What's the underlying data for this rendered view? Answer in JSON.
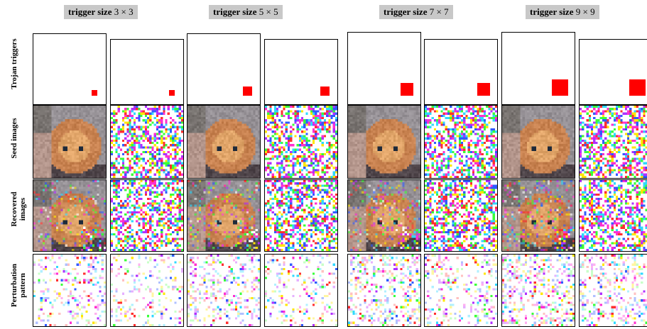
{
  "column_headers": [
    {
      "bold": "trigger size",
      "size": "3 × 3"
    },
    {
      "bold": "trigger size",
      "size": "5 × 5"
    },
    {
      "bold": "trigger size",
      "size": "7 × 7"
    },
    {
      "bold": "trigger size",
      "size": "9 × 9"
    }
  ],
  "row_labels": [
    {
      "line1": "Trojan triggers",
      "line2": ""
    },
    {
      "line1": "Seed images",
      "line2": ""
    },
    {
      "line1": "Recovered",
      "line2": "images"
    },
    {
      "line1": "Perturbation",
      "line2": "pattern"
    }
  ],
  "seed_types": [
    "kitten",
    "noise",
    "kitten",
    "noise",
    "kitten",
    "noise",
    "kitten",
    "noise"
  ],
  "trigger_sizes": [
    3,
    3,
    5,
    5,
    7,
    7,
    9,
    9
  ],
  "colors": {
    "trigger": "#ff0000",
    "header_bg": "#c8c8c8"
  }
}
